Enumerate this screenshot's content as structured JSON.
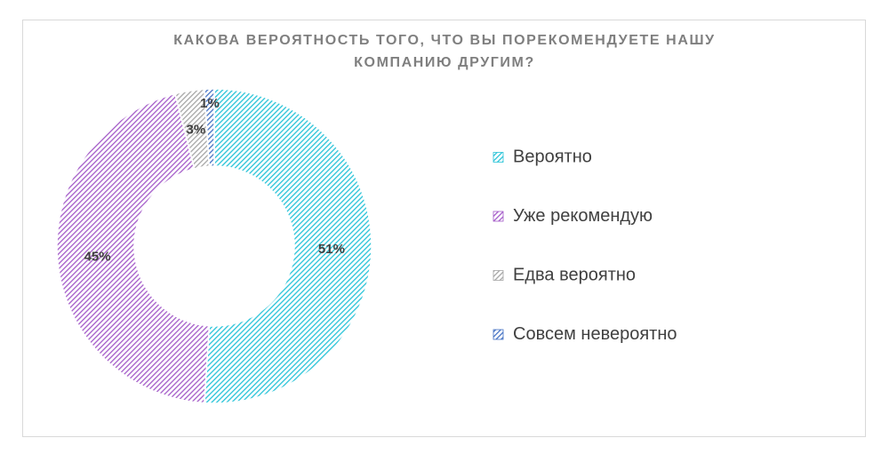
{
  "chart_data": {
    "type": "donut",
    "title": "КАКОВА ВЕРОЯТНОСТЬ ТОГО, ЧТО ВЫ ПОРЕКОМЕНДУЕТЕ НАШУ КОМПАНИЮ ДРУГИМ?",
    "categories": [
      "Вероятно",
      "Уже рекомендую",
      "Едва вероятно",
      "Совсем невероятно"
    ],
    "values": [
      51,
      45,
      3,
      1
    ],
    "value_labels": [
      "51%",
      "45%",
      "3%",
      "1%"
    ],
    "colors": [
      "#27c3d8",
      "#a45bc9",
      "#a6a6a6",
      "#4472c4"
    ],
    "legend": "right"
  }
}
